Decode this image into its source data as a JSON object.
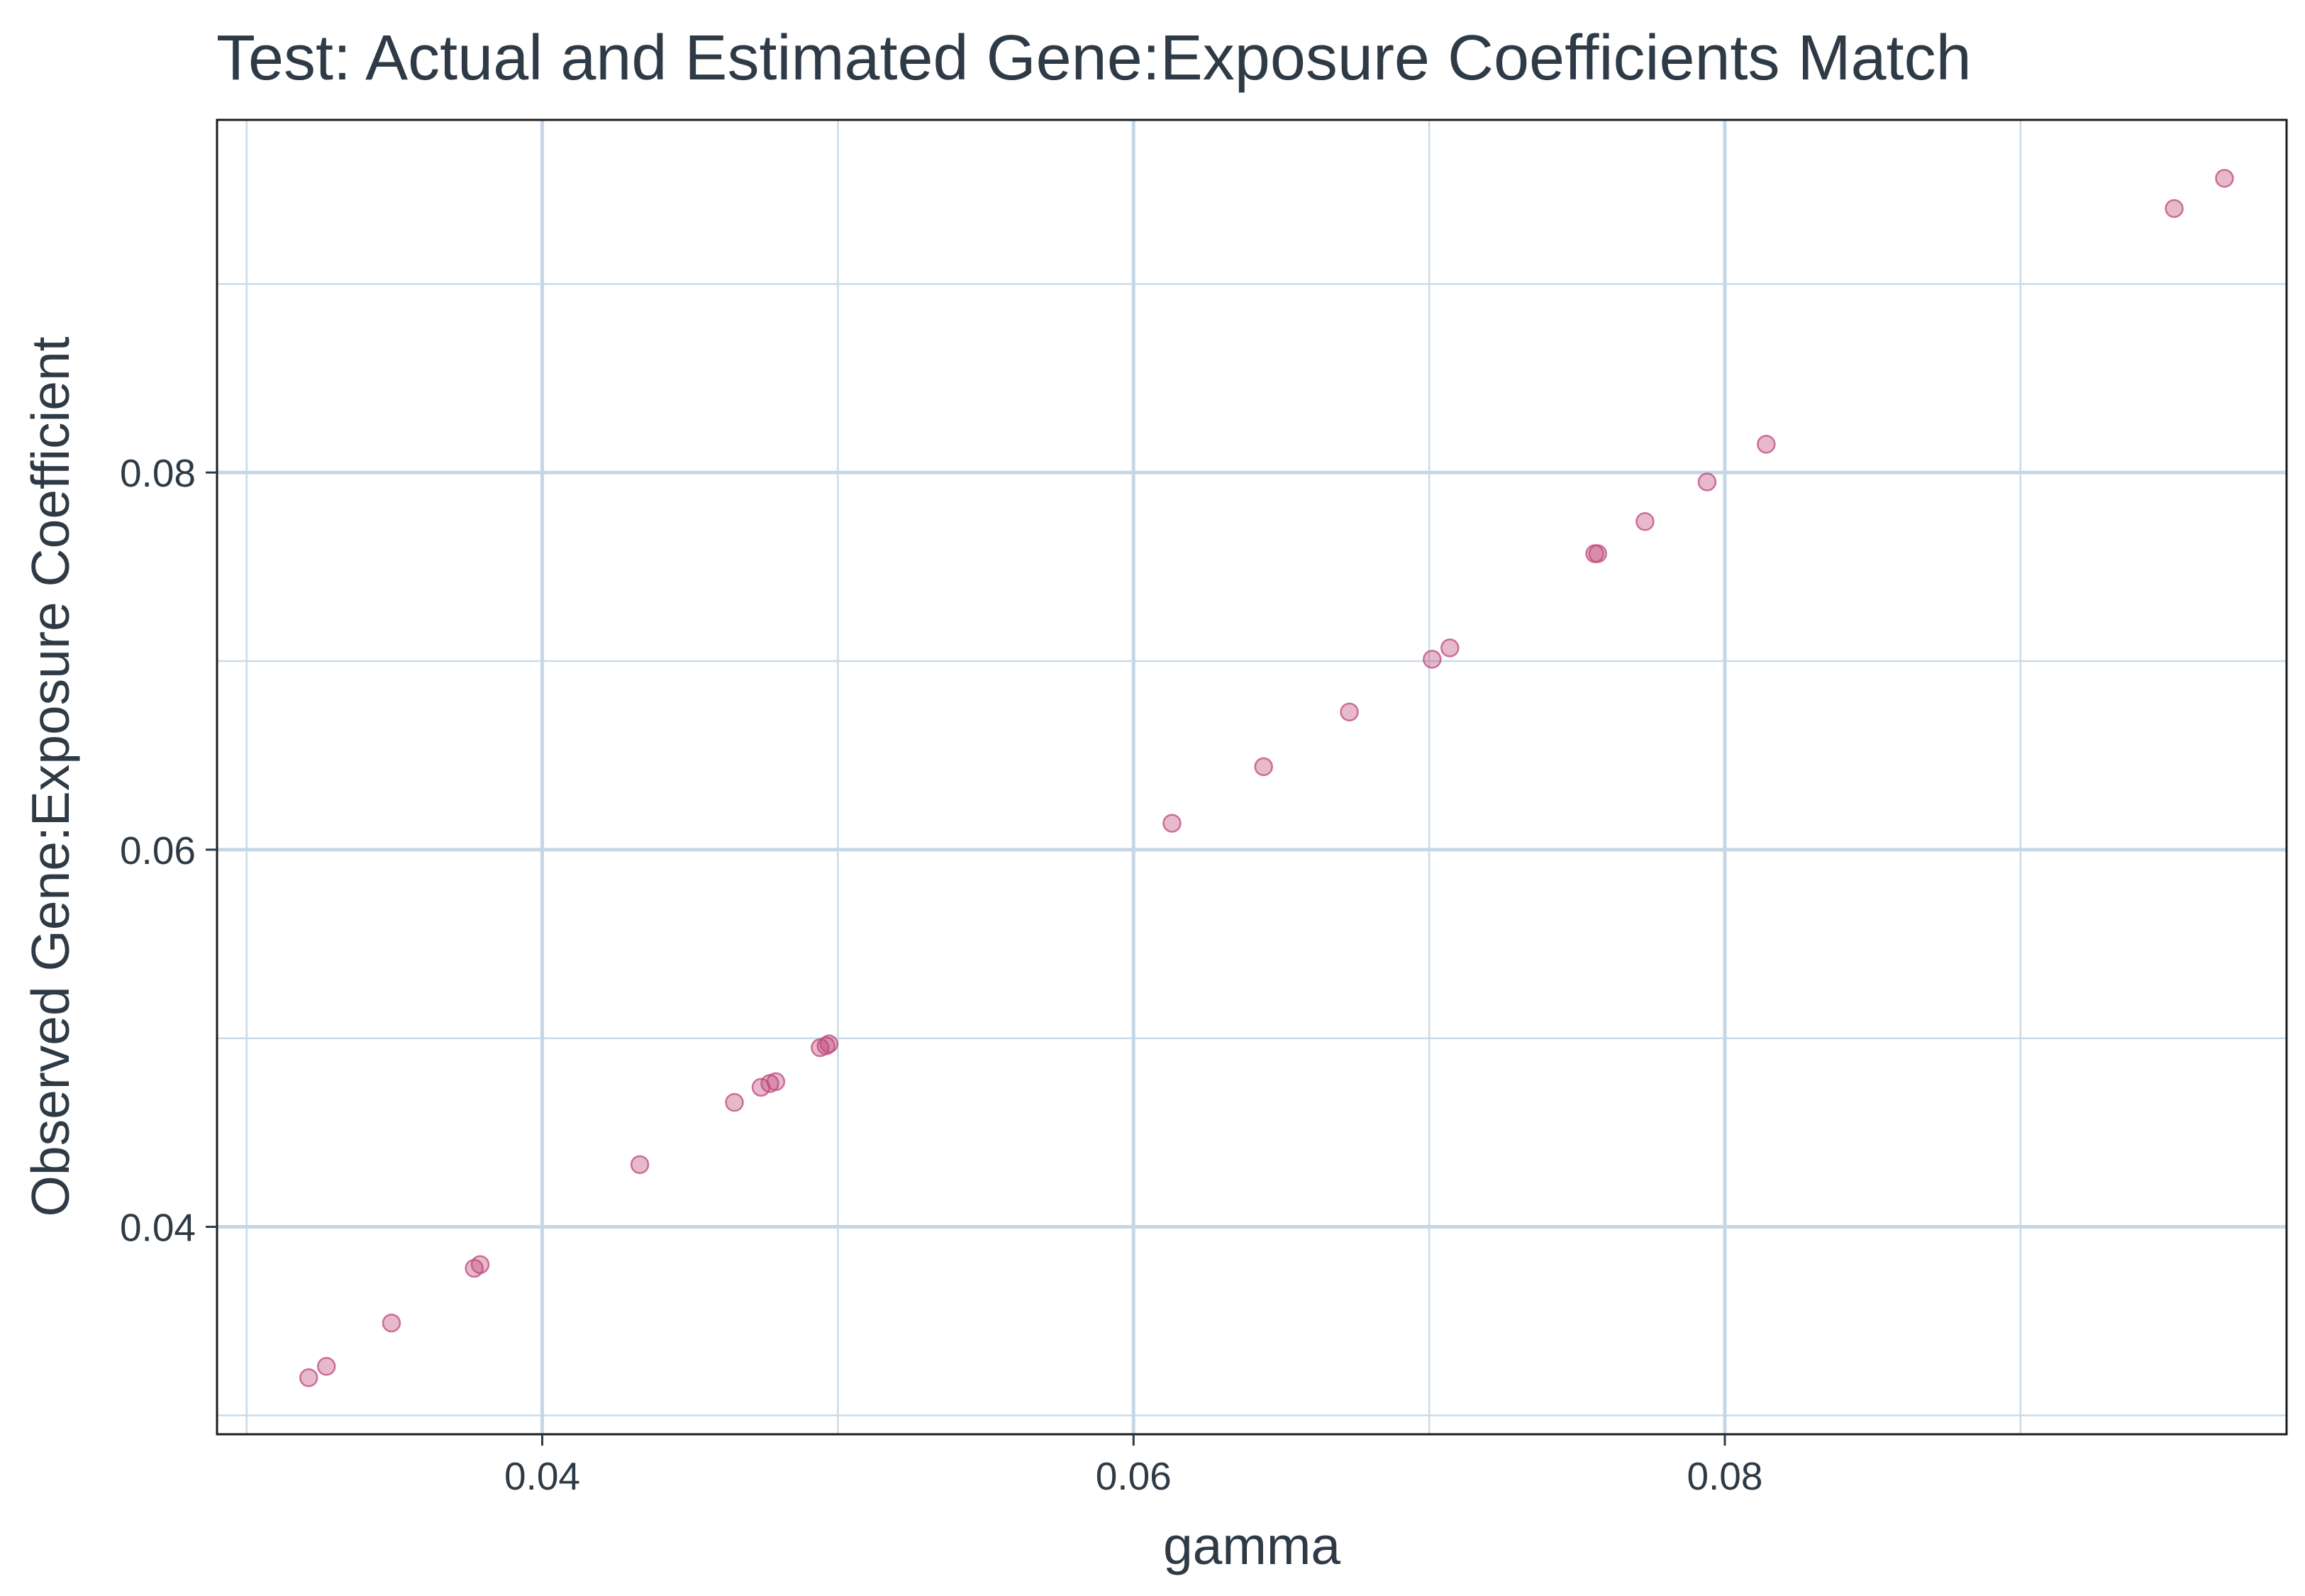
{
  "chart_data": {
    "type": "scatter",
    "title": "Test: Actual and Estimated Gene:Exposure Coefficients Match",
    "xlabel": "gamma",
    "ylabel": "Observed Gene:Exposure Coefficient",
    "xlim": [
      0.029,
      0.099
    ],
    "ylim": [
      0.029,
      0.0987
    ],
    "x_ticks": [
      0.04,
      0.06,
      0.08
    ],
    "x_tick_labels": [
      "0.04",
      "0.06",
      "0.08"
    ],
    "x_minor_ticks": [
      0.03,
      0.05,
      0.07,
      0.09
    ],
    "y_ticks": [
      0.04,
      0.06,
      0.08
    ],
    "y_tick_labels": [
      "0.04",
      "0.06",
      "0.08"
    ],
    "y_minor_ticks": [
      0.03,
      0.05,
      0.07,
      0.09
    ],
    "grid": true,
    "point_color": "#c0487a",
    "point_fill_opacity": 0.38,
    "points": [
      {
        "x": 0.0321,
        "y": 0.032
      },
      {
        "x": 0.0327,
        "y": 0.0326
      },
      {
        "x": 0.0349,
        "y": 0.0349
      },
      {
        "x": 0.0377,
        "y": 0.0378
      },
      {
        "x": 0.0379,
        "y": 0.038
      },
      {
        "x": 0.0433,
        "y": 0.0433
      },
      {
        "x": 0.0465,
        "y": 0.0466
      },
      {
        "x": 0.0474,
        "y": 0.0474
      },
      {
        "x": 0.0477,
        "y": 0.0476
      },
      {
        "x": 0.0479,
        "y": 0.0477
      },
      {
        "x": 0.0494,
        "y": 0.0495
      },
      {
        "x": 0.0496,
        "y": 0.0496
      },
      {
        "x": 0.0497,
        "y": 0.0497
      },
      {
        "x": 0.0613,
        "y": 0.0614
      },
      {
        "x": 0.0644,
        "y": 0.0644
      },
      {
        "x": 0.0673,
        "y": 0.0673
      },
      {
        "x": 0.0701,
        "y": 0.0701
      },
      {
        "x": 0.0707,
        "y": 0.0707
      },
      {
        "x": 0.0756,
        "y": 0.0757
      },
      {
        "x": 0.0757,
        "y": 0.0757
      },
      {
        "x": 0.0773,
        "y": 0.0774
      },
      {
        "x": 0.0794,
        "y": 0.0795
      },
      {
        "x": 0.0814,
        "y": 0.0815
      },
      {
        "x": 0.0952,
        "y": 0.094
      },
      {
        "x": 0.0969,
        "y": 0.0956
      }
    ]
  }
}
